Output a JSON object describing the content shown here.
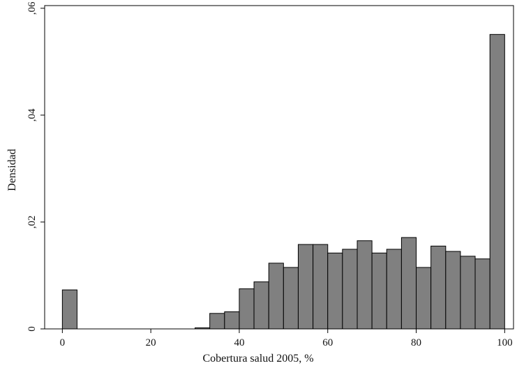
{
  "chart_data": {
    "type": "bar",
    "subtype": "histogram",
    "xlabel": "Cobertura salud 2005, %",
    "ylabel": "Densidad",
    "xlim": [
      -4,
      102
    ],
    "ylim": [
      0,
      0.0605
    ],
    "x_ticks": [
      {
        "value": 0,
        "label": "0"
      },
      {
        "value": 20,
        "label": "20"
      },
      {
        "value": 40,
        "label": "40"
      },
      {
        "value": 60,
        "label": "60"
      },
      {
        "value": 80,
        "label": "80"
      },
      {
        "value": 100,
        "label": "100"
      }
    ],
    "y_ticks": [
      {
        "value": 0,
        "label": "0"
      },
      {
        "value": 0.02,
        "label": ",02"
      },
      {
        "value": 0.04,
        "label": ",04"
      },
      {
        "value": 0.06,
        "label": ",06"
      }
    ],
    "bar_color": "#808080",
    "bar_edge_color": "#000000",
    "grid": false,
    "bins": [
      {
        "x0": 0,
        "x1": 3.33,
        "value": 0.0073
      },
      {
        "x0": 3.33,
        "x1": 6.67,
        "value": 0
      },
      {
        "x0": 6.67,
        "x1": 10,
        "value": 0
      },
      {
        "x0": 10,
        "x1": 13.33,
        "value": 0
      },
      {
        "x0": 13.33,
        "x1": 16.67,
        "value": 0
      },
      {
        "x0": 16.67,
        "x1": 20,
        "value": 0
      },
      {
        "x0": 20,
        "x1": 23.33,
        "value": 0
      },
      {
        "x0": 23.33,
        "x1": 26.67,
        "value": 0
      },
      {
        "x0": 26.67,
        "x1": 30,
        "value": 0
      },
      {
        "x0": 30,
        "x1": 33.33,
        "value": 0.0002
      },
      {
        "x0": 33.33,
        "x1": 36.67,
        "value": 0.0029
      },
      {
        "x0": 36.67,
        "x1": 40,
        "value": 0.0032
      },
      {
        "x0": 40,
        "x1": 43.33,
        "value": 0.0075
      },
      {
        "x0": 43.33,
        "x1": 46.67,
        "value": 0.0088
      },
      {
        "x0": 46.67,
        "x1": 50,
        "value": 0.0123
      },
      {
        "x0": 50,
        "x1": 53.33,
        "value": 0.0115
      },
      {
        "x0": 53.33,
        "x1": 56.67,
        "value": 0.0158
      },
      {
        "x0": 56.67,
        "x1": 60,
        "value": 0.0158
      },
      {
        "x0": 60,
        "x1": 63.33,
        "value": 0.0142
      },
      {
        "x0": 63.33,
        "x1": 66.67,
        "value": 0.0149
      },
      {
        "x0": 66.67,
        "x1": 70,
        "value": 0.0165
      },
      {
        "x0": 70,
        "x1": 73.33,
        "value": 0.0142
      },
      {
        "x0": 73.33,
        "x1": 76.67,
        "value": 0.0149
      },
      {
        "x0": 76.67,
        "x1": 80,
        "value": 0.0171
      },
      {
        "x0": 80,
        "x1": 83.33,
        "value": 0.0115
      },
      {
        "x0": 83.33,
        "x1": 86.67,
        "value": 0.0155
      },
      {
        "x0": 86.67,
        "x1": 90,
        "value": 0.0145
      },
      {
        "x0": 90,
        "x1": 93.33,
        "value": 0.0136
      },
      {
        "x0": 93.33,
        "x1": 96.67,
        "value": 0.0131
      },
      {
        "x0": 96.67,
        "x1": 100,
        "value": 0.0551
      }
    ]
  }
}
